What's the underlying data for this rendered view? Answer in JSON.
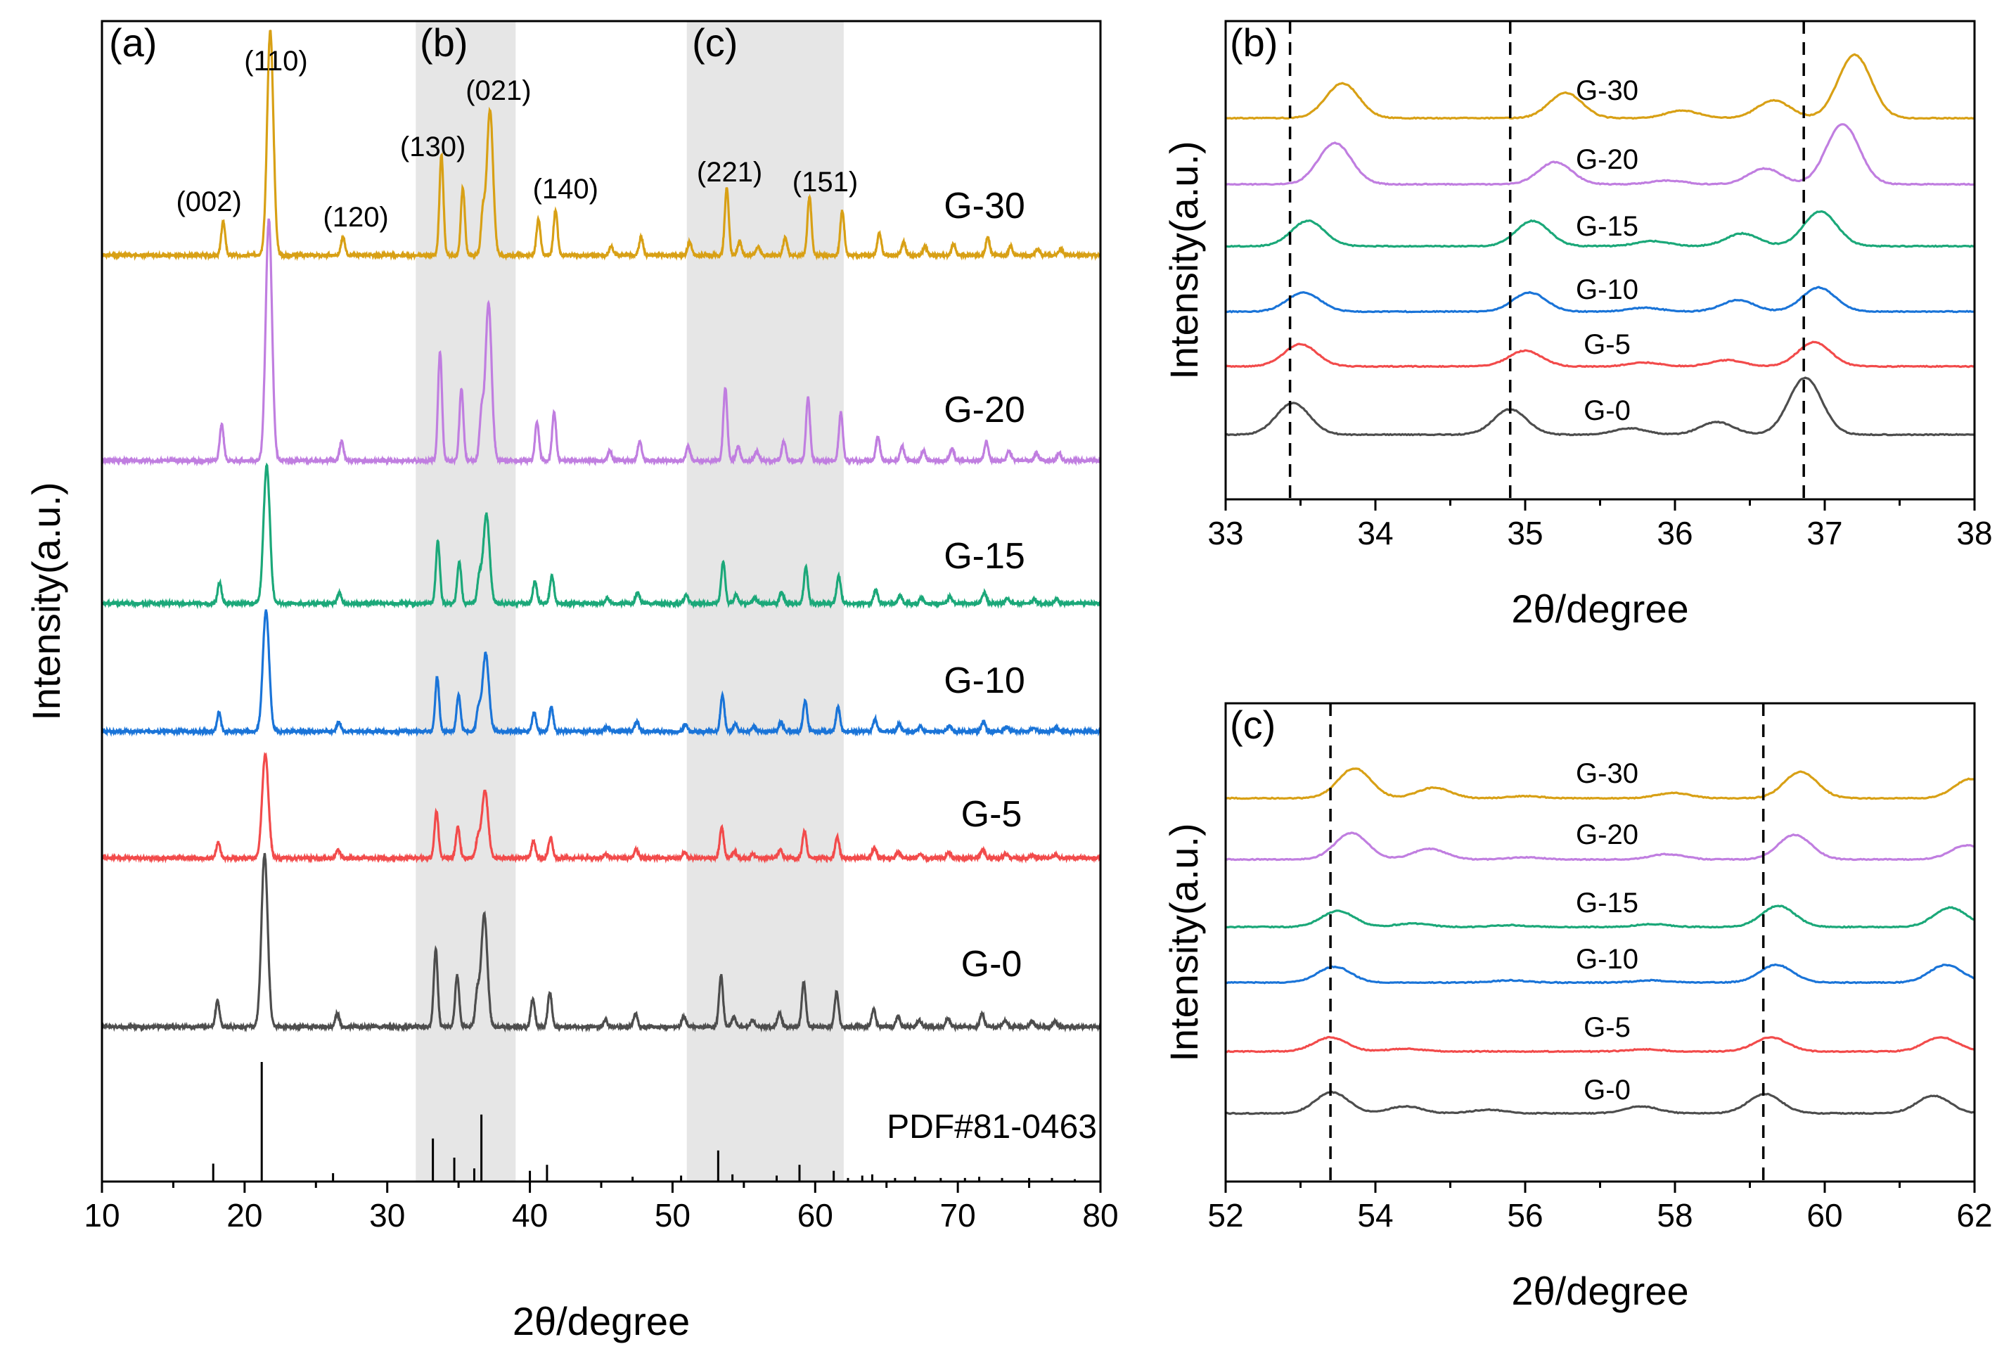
{
  "chart_data": [
    {
      "panel": "(a)",
      "type": "line",
      "xlabel": "2θ/degree",
      "ylabel": "Intensity(a.u.)",
      "xlim": [
        10,
        80
      ],
      "xticks": [
        10,
        20,
        30,
        40,
        50,
        60,
        70,
        80
      ],
      "highlight_regions": [
        {
          "label": "(b)",
          "range": [
            32,
            39
          ]
        },
        {
          "label": "(c)",
          "range": [
            51,
            62
          ]
        }
      ],
      "series": [
        {
          "name": "G-0",
          "color": "#4d4d4d",
          "peak_shift": 0.0,
          "scale": 1.0
        },
        {
          "name": "G-5",
          "color": "#f24b4b",
          "peak_shift": 0.05,
          "scale": 0.6
        },
        {
          "name": "G-10",
          "color": "#1a74d8",
          "peak_shift": 0.1,
          "scale": 0.7
        },
        {
          "name": "G-15",
          "color": "#1ba879",
          "peak_shift": 0.15,
          "scale": 0.8
        },
        {
          "name": "G-20",
          "color": "#c07ee0",
          "peak_shift": 0.3,
          "scale": 1.4
        },
        {
          "name": "G-30",
          "color": "#d8a015",
          "peak_shift": 0.4,
          "scale": 1.3
        }
      ],
      "peaks": [
        {
          "pos": 18.1,
          "rel": 0.15,
          "hkl": "(002)"
        },
        {
          "pos": 21.4,
          "rel": 1.0,
          "hkl": "(110)"
        },
        {
          "pos": 26.5,
          "rel": 0.08,
          "hkl": "(120)"
        },
        {
          "pos": 33.4,
          "rel": 0.45,
          "hkl": "(130)"
        },
        {
          "pos": 34.9,
          "rel": 0.3
        },
        {
          "pos": 36.3,
          "rel": 0.18
        },
        {
          "pos": 36.8,
          "rel": 0.65,
          "hkl": "(021)"
        },
        {
          "pos": 40.2,
          "rel": 0.16,
          "hkl": "(140)"
        },
        {
          "pos": 41.4,
          "rel": 0.2
        },
        {
          "pos": 45.3,
          "rel": 0.04
        },
        {
          "pos": 47.4,
          "rel": 0.08
        },
        {
          "pos": 50.8,
          "rel": 0.06
        },
        {
          "pos": 53.4,
          "rel": 0.3,
          "hkl": "(221)"
        },
        {
          "pos": 54.3,
          "rel": 0.06
        },
        {
          "pos": 55.6,
          "rel": 0.04
        },
        {
          "pos": 57.5,
          "rel": 0.08
        },
        {
          "pos": 59.2,
          "rel": 0.26,
          "hkl": "(151)"
        },
        {
          "pos": 61.5,
          "rel": 0.2
        },
        {
          "pos": 64.1,
          "rel": 0.1
        },
        {
          "pos": 65.8,
          "rel": 0.06
        },
        {
          "pos": 67.3,
          "rel": 0.04
        },
        {
          "pos": 69.3,
          "rel": 0.05
        },
        {
          "pos": 71.7,
          "rel": 0.08
        },
        {
          "pos": 73.3,
          "rel": 0.04
        },
        {
          "pos": 75.2,
          "rel": 0.03
        },
        {
          "pos": 76.8,
          "rel": 0.03
        }
      ],
      "reference": {
        "name": "PDF#81-0463",
        "sticks": [
          {
            "pos": 17.8,
            "rel": 0.15
          },
          {
            "pos": 21.2,
            "rel": 1.0
          },
          {
            "pos": 26.2,
            "rel": 0.07
          },
          {
            "pos": 33.2,
            "rel": 0.36
          },
          {
            "pos": 34.7,
            "rel": 0.2
          },
          {
            "pos": 36.1,
            "rel": 0.11
          },
          {
            "pos": 36.6,
            "rel": 0.56
          },
          {
            "pos": 40.0,
            "rel": 0.09
          },
          {
            "pos": 41.2,
            "rel": 0.14
          },
          {
            "pos": 47.2,
            "rel": 0.04
          },
          {
            "pos": 50.6,
            "rel": 0.05
          },
          {
            "pos": 53.2,
            "rel": 0.26
          },
          {
            "pos": 54.2,
            "rel": 0.06
          },
          {
            "pos": 57.3,
            "rel": 0.05
          },
          {
            "pos": 58.9,
            "rel": 0.14
          },
          {
            "pos": 61.3,
            "rel": 0.09
          },
          {
            "pos": 62.3,
            "rel": 0.03
          },
          {
            "pos": 63.3,
            "rel": 0.05
          },
          {
            "pos": 64.0,
            "rel": 0.06
          },
          {
            "pos": 65.6,
            "rel": 0.03
          },
          {
            "pos": 67.0,
            "rel": 0.04
          },
          {
            "pos": 68.8,
            "rel": 0.03
          },
          {
            "pos": 70.5,
            "rel": 0.03
          },
          {
            "pos": 71.5,
            "rel": 0.04
          },
          {
            "pos": 73.1,
            "rel": 0.03
          },
          {
            "pos": 75.0,
            "rel": 0.03
          },
          {
            "pos": 76.6,
            "rel": 0.03
          },
          {
            "pos": 78.2,
            "rel": 0.02
          }
        ]
      }
    },
    {
      "panel": "(b)",
      "type": "line",
      "xlabel": "2θ/degree",
      "ylabel": "Intensity(a.u.)",
      "xlim": [
        33,
        38
      ],
      "xticks": [
        33,
        34,
        35,
        36,
        37,
        38
      ],
      "dashed_lines": [
        33.43,
        34.9,
        36.86
      ],
      "series": [
        {
          "name": "G-0",
          "peaks": [
            [
              33.45,
              0.5
            ],
            [
              34.9,
              0.4
            ],
            [
              35.7,
              0.1
            ],
            [
              36.28,
              0.2
            ],
            [
              36.87,
              0.9
            ]
          ]
        },
        {
          "name": "G-5",
          "peaks": [
            [
              33.5,
              0.35
            ],
            [
              35.0,
              0.25
            ],
            [
              35.8,
              0.06
            ],
            [
              36.35,
              0.1
            ],
            [
              36.93,
              0.38
            ]
          ]
        },
        {
          "name": "G-10",
          "peaks": [
            [
              33.52,
              0.3
            ],
            [
              35.03,
              0.3
            ],
            [
              35.8,
              0.06
            ],
            [
              36.42,
              0.18
            ],
            [
              36.96,
              0.38
            ]
          ]
        },
        {
          "name": "G-15",
          "peaks": [
            [
              33.55,
              0.4
            ],
            [
              35.05,
              0.4
            ],
            [
              35.85,
              0.08
            ],
            [
              36.45,
              0.2
            ],
            [
              36.97,
              0.55
            ]
          ]
        },
        {
          "name": "G-20",
          "peaks": [
            [
              33.73,
              0.65
            ],
            [
              35.2,
              0.35
            ],
            [
              35.95,
              0.06
            ],
            [
              36.6,
              0.25
            ],
            [
              37.12,
              0.95
            ]
          ]
        },
        {
          "name": "G-30",
          "peaks": [
            [
              33.78,
              0.55
            ],
            [
              35.27,
              0.4
            ],
            [
              36.05,
              0.12
            ],
            [
              36.66,
              0.28
            ],
            [
              37.2,
              1.0
            ]
          ]
        }
      ]
    },
    {
      "panel": "(c)",
      "type": "line",
      "xlabel": "2θ/degree",
      "ylabel": "Intensity(a.u.)",
      "xlim": [
        52,
        62
      ],
      "xticks": [
        52,
        54,
        56,
        58,
        60,
        62
      ],
      "dashed_lines": [
        53.4,
        59.18
      ],
      "series": [
        {
          "name": "G-0",
          "peaks": [
            [
              53.42,
              0.6
            ],
            [
              54.4,
              0.2
            ],
            [
              55.5,
              0.1
            ],
            [
              57.55,
              0.2
            ],
            [
              59.2,
              0.55
            ],
            [
              61.45,
              0.5
            ]
          ]
        },
        {
          "name": "G-5",
          "peaks": [
            [
              53.4,
              0.4
            ],
            [
              54.4,
              0.08
            ],
            [
              57.6,
              0.06
            ],
            [
              59.28,
              0.4
            ],
            [
              61.55,
              0.4
            ]
          ]
        },
        {
          "name": "G-10",
          "peaks": [
            [
              53.45,
              0.45
            ],
            [
              55.8,
              0.06
            ],
            [
              57.7,
              0.06
            ],
            [
              59.35,
              0.5
            ],
            [
              61.62,
              0.5
            ]
          ]
        },
        {
          "name": "G-15",
          "peaks": [
            [
              53.5,
              0.45
            ],
            [
              54.5,
              0.1
            ],
            [
              55.8,
              0.05
            ],
            [
              57.7,
              0.08
            ],
            [
              59.38,
              0.6
            ],
            [
              61.68,
              0.55
            ]
          ]
        },
        {
          "name": "G-20",
          "peaks": [
            [
              53.68,
              0.75
            ],
            [
              54.72,
              0.3
            ],
            [
              56.0,
              0.06
            ],
            [
              57.9,
              0.15
            ],
            [
              59.6,
              0.7
            ],
            [
              61.9,
              0.4
            ]
          ]
        },
        {
          "name": "G-30",
          "peaks": [
            [
              53.72,
              0.85
            ],
            [
              54.78,
              0.3
            ],
            [
              56.0,
              0.06
            ],
            [
              57.98,
              0.15
            ],
            [
              59.68,
              0.75
            ],
            [
              61.95,
              0.55
            ]
          ]
        }
      ]
    }
  ]
}
